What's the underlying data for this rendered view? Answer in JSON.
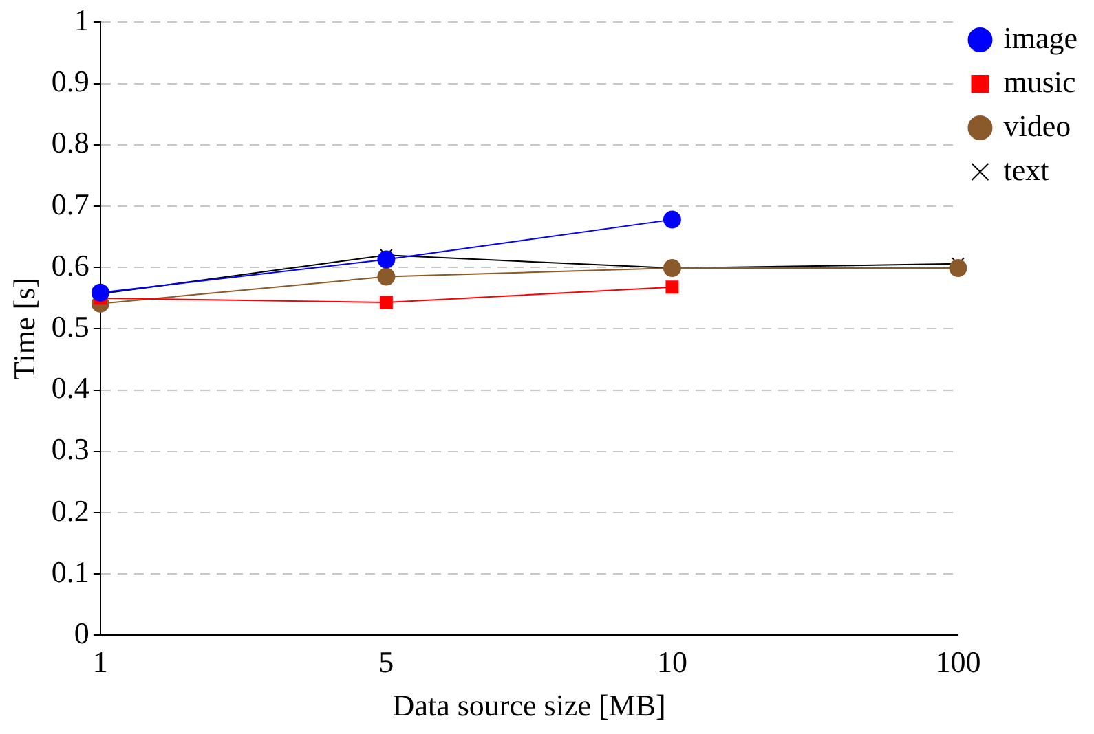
{
  "chart_data": {
    "type": "line",
    "xlabel": "Data source size [MB]",
    "ylabel": "Time [s]",
    "categories": [
      "1",
      "5",
      "10",
      "100"
    ],
    "series": [
      {
        "name": "image",
        "color": "#0000ff",
        "marker": "circle",
        "values": [
          0.559,
          0.613,
          0.678,
          null
        ]
      },
      {
        "name": "music",
        "color": "#ff0000",
        "marker": "square",
        "values": [
          0.55,
          0.543,
          0.568,
          null
        ]
      },
      {
        "name": "video",
        "color": "#8b5a2b",
        "marker": "circle",
        "values": [
          0.541,
          0.585,
          0.599,
          0.599
        ]
      },
      {
        "name": "text",
        "color": "#000000",
        "marker": "cross",
        "values": [
          0.557,
          0.62,
          0.599,
          0.606
        ]
      }
    ],
    "ylim": [
      0,
      1
    ],
    "yticks": [
      0,
      0.1,
      0.2,
      0.3,
      0.4,
      0.5,
      0.6,
      0.7,
      0.8,
      0.9,
      1
    ],
    "grid": "y",
    "legend": "top right"
  }
}
